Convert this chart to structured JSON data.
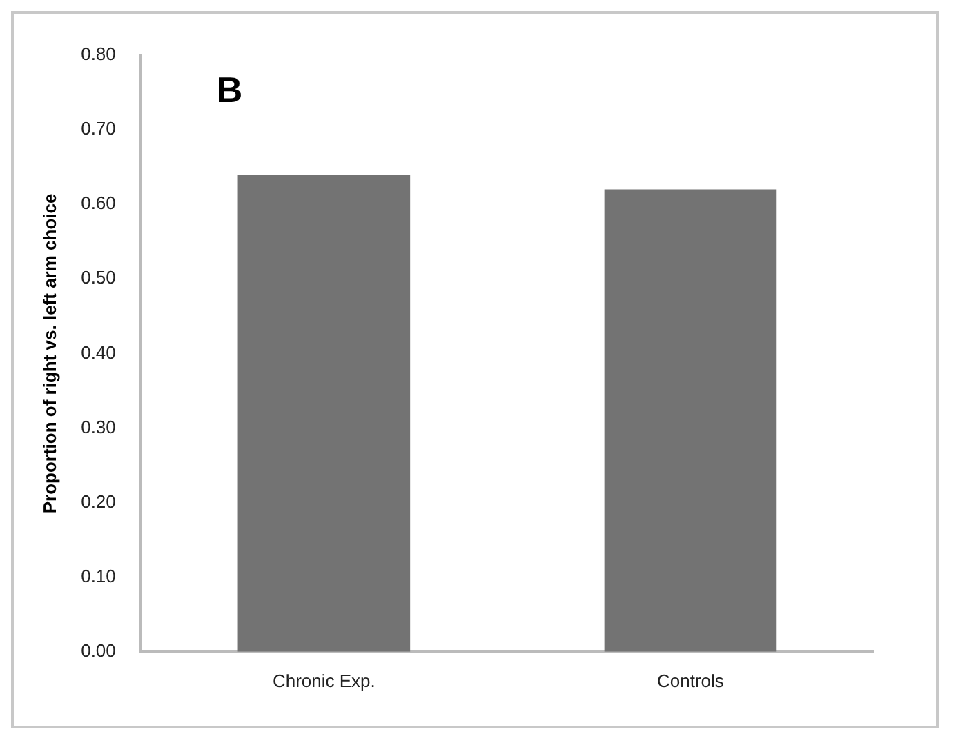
{
  "chart_data": {
    "type": "bar",
    "categories": [
      "Chronic Exp.",
      "Controls"
    ],
    "values": [
      0.64,
      0.62
    ],
    "color": "#737373",
    "ylabel": "Proportion of right vs. left arm choice",
    "ylim": [
      0,
      0.8
    ],
    "yticks": [
      {
        "value": 0,
        "label": "0.00"
      },
      {
        "value": 0.1,
        "label": "0.10"
      },
      {
        "value": 0.2,
        "label": "0.20"
      },
      {
        "value": 0.3,
        "label": "0.30"
      },
      {
        "value": 0.4,
        "label": "0.40"
      },
      {
        "value": 0.5,
        "label": "0.50"
      },
      {
        "value": 0.6,
        "label": "0.60"
      },
      {
        "value": 0.7,
        "label": "0.70"
      },
      {
        "value": 0.8,
        "label": "0.80"
      }
    ],
    "grid": false,
    "legend": false,
    "annotations": [
      "B"
    ]
  }
}
